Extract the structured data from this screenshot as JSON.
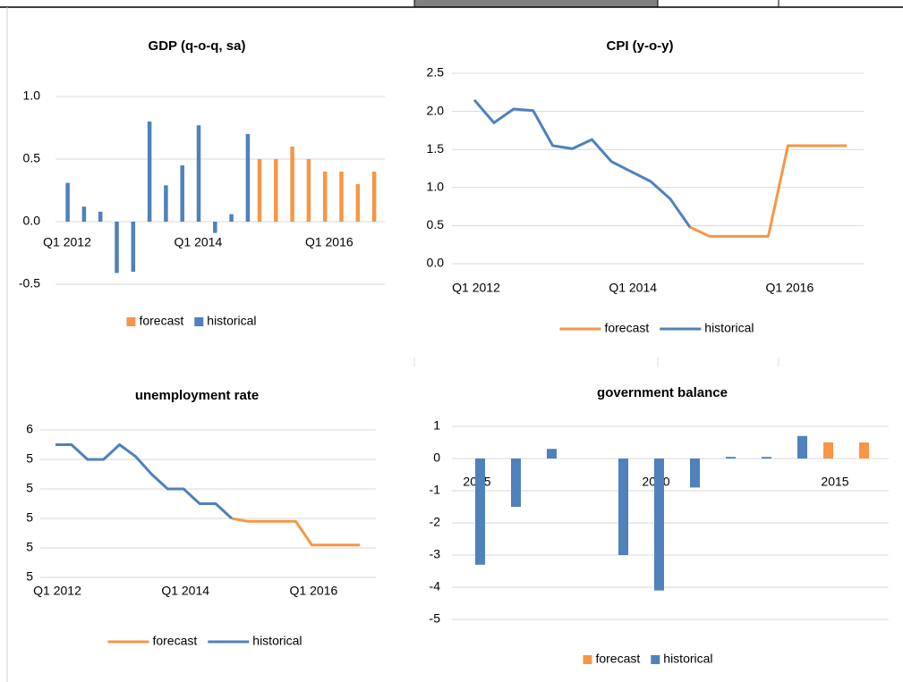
{
  "chart_data": [
    {
      "type": "bar",
      "title": "GDP (q-o-q, sa)",
      "categories": [
        "Q1 2012",
        null,
        null,
        null,
        null,
        null,
        null,
        null,
        "Q1 2014",
        null,
        null,
        null,
        null,
        null,
        null,
        null,
        "Q1 2016",
        null,
        null,
        null
      ],
      "series": [
        {
          "name": "forecast",
          "color": "#f79646",
          "values": [
            null,
            null,
            null,
            null,
            null,
            null,
            null,
            null,
            null,
            null,
            null,
            null,
            0.5,
            0.5,
            0.6,
            0.5,
            0.4,
            0.4,
            0.3,
            0.4
          ]
        },
        {
          "name": "historical",
          "color": "#4f81bd",
          "values": [
            0.31,
            0.12,
            0.08,
            -0.41,
            -0.4,
            0.8,
            0.29,
            0.45,
            0.77,
            -0.09,
            0.06,
            0.7,
            null,
            null,
            null,
            null,
            null,
            null,
            null,
            null
          ]
        }
      ],
      "ylim": [
        -0.5,
        1.0
      ],
      "yticks": [
        {
          "value": 1,
          "label": "1.0"
        },
        0.5,
        {
          "value": 0,
          "label": "0.0"
        },
        -0.5
      ],
      "grid": true,
      "legend": "bottom"
    },
    {
      "type": "line",
      "title": "CPI (y-o-y)",
      "categories": [
        "Q1 2012",
        null,
        null,
        null,
        null,
        null,
        null,
        null,
        "Q1 2014",
        null,
        null,
        null,
        null,
        null,
        null,
        null,
        "Q1 2016",
        null,
        null,
        null
      ],
      "series": [
        {
          "name": "forecast",
          "color": "#f79646",
          "values": [
            null,
            null,
            null,
            null,
            null,
            null,
            null,
            null,
            null,
            null,
            null,
            0.48,
            0.36,
            0.36,
            0.36,
            0.36,
            1.55,
            1.55,
            1.55,
            1.55
          ]
        },
        {
          "name": "historical",
          "color": "#4f81bd",
          "values": [
            2.15,
            1.85,
            2.03,
            2.01,
            1.55,
            1.51,
            1.63,
            1.34,
            1.21,
            1.08,
            0.85,
            0.48,
            null,
            null,
            null,
            null,
            null,
            null,
            null,
            null
          ]
        }
      ],
      "ylim": [
        0,
        2.5
      ],
      "yticks": [
        {
          "value": 0,
          "label": "0.0"
        },
        0.5,
        {
          "value": 1,
          "label": "1.0"
        },
        1.5,
        {
          "value": 2,
          "label": "2.0"
        },
        2.5
      ],
      "grid": true,
      "legend": "bottom"
    },
    {
      "type": "line",
      "title": "unemployment rate",
      "categories": [
        "Q1 2012",
        null,
        null,
        null,
        null,
        null,
        null,
        null,
        "Q1 2014",
        null,
        null,
        null,
        null,
        null,
        null,
        null,
        "Q1 2016",
        null,
        null,
        null
      ],
      "series": [
        {
          "name": "forecast",
          "color": "#f79646",
          "values": [
            null,
            null,
            null,
            null,
            null,
            null,
            null,
            null,
            null,
            null,
            null,
            5.2,
            5.19,
            5.19,
            5.19,
            5.19,
            5.11,
            5.11,
            5.11,
            5.11
          ]
        },
        {
          "name": "historical",
          "color": "#4f81bd",
          "values": [
            5.45,
            5.45,
            5.4,
            5.4,
            5.45,
            5.41,
            5.35,
            5.3,
            5.3,
            5.25,
            5.25,
            5.2,
            null,
            null,
            null,
            null,
            null,
            null,
            null,
            null
          ]
        }
      ],
      "ylim": [
        5.0,
        5.5
      ],
      "yticks": [
        {
          "value": 5.5,
          "label": "6"
        },
        {
          "value": 5.4,
          "label": "5"
        },
        {
          "value": 5.3,
          "label": "5"
        },
        {
          "value": 5.2,
          "label": "5"
        },
        {
          "value": 5.1,
          "label": "5"
        },
        5
      ],
      "grid": true,
      "legend": "bottom"
    },
    {
      "type": "bar",
      "title": "government balance",
      "categories": [
        "2005",
        null,
        null,
        null,
        null,
        "2010",
        null,
        null,
        null,
        null,
        "2015",
        null
      ],
      "series": [
        {
          "name": "forecast",
          "color": "#f79646",
          "values": [
            null,
            null,
            null,
            null,
            null,
            null,
            null,
            null,
            null,
            null,
            0.5,
            0.5
          ]
        },
        {
          "name": "historical",
          "color": "#4f81bd",
          "values": [
            -3.3,
            -1.5,
            0.3,
            0,
            -3.0,
            -4.1,
            -0.9,
            0.05,
            0.05,
            0.7,
            null,
            null
          ]
        }
      ],
      "ylim": [
        -5,
        1
      ],
      "yticks": [
        1,
        0,
        -1,
        -2,
        -3,
        -4,
        -5
      ],
      "grid": true,
      "legend": "bottom"
    }
  ]
}
